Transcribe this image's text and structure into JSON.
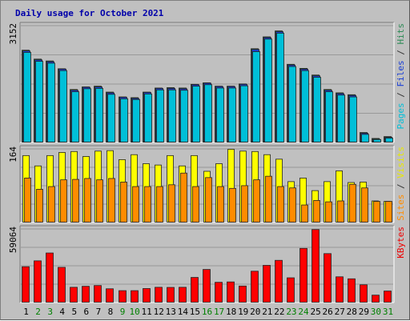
{
  "chart_data": {
    "type": "bar",
    "title": "Daily usage for October 2021",
    "categories": [
      "1",
      "2",
      "3",
      "4",
      "5",
      "6",
      "7",
      "8",
      "9",
      "10",
      "11",
      "12",
      "13",
      "14",
      "15",
      "16",
      "17",
      "18",
      "19",
      "20",
      "21",
      "22",
      "23",
      "24",
      "25",
      "26",
      "27",
      "28",
      "29",
      "30",
      "31"
    ],
    "weekend_days": [
      "2",
      "3",
      "9",
      "10",
      "16",
      "17",
      "23",
      "24",
      "30",
      "31"
    ],
    "panels": [
      {
        "id": "top",
        "ymax": 3152,
        "ymax_label": "3152",
        "axis_label": [
          {
            "text": "Pages",
            "color": "#00bfd8"
          },
          {
            "text": " / ",
            "color": "#333333"
          },
          {
            "text": "Files",
            "color": "#1a3fd6"
          },
          {
            "text": " / ",
            "color": "#333333"
          },
          {
            "text": "Hits",
            "color": "#2e8b57"
          }
        ],
        "series": [
          {
            "name": "Hits",
            "color": "#2e8b57",
            "values": [
              2500,
              2260,
              2210,
              2000,
              1440,
              1510,
              1530,
              1370,
              1240,
              1220,
              1370,
              1480,
              1490,
              1480,
              1580,
              1620,
              1530,
              1530,
              1590,
              2540,
              2860,
              3020,
              2120,
              2010,
              1830,
              1440,
              1350,
              1300,
              280,
              120,
              170
            ]
          },
          {
            "name": "Files",
            "color": "#1a3fd6",
            "values": [
              2480,
              2240,
              2190,
              1990,
              1420,
              1500,
              1510,
              1350,
              1230,
              1200,
              1360,
              1470,
              1470,
              1460,
              1570,
              1610,
              1520,
              1520,
              1580,
              2520,
              2840,
              3000,
              2100,
              1990,
              1810,
              1420,
              1330,
              1280,
              260,
              100,
              150
            ]
          },
          {
            "name": "Pages",
            "color": "#00bfd8",
            "values": [
              2440,
              2200,
              2150,
              1950,
              1380,
              1460,
              1470,
              1310,
              1190,
              1170,
              1320,
              1430,
              1430,
              1420,
              1530,
              1570,
              1480,
              1480,
              1540,
              2460,
              2800,
              2960,
              2060,
              1950,
              1770,
              1380,
              1290,
              1240,
              230,
              90,
              130
            ]
          }
        ]
      },
      {
        "id": "middle",
        "ymax": 164,
        "ymax_label": "164",
        "axis_label": [
          {
            "text": "Sites",
            "color": "#ff8c00"
          },
          {
            "text": " / ",
            "color": "#333333"
          },
          {
            "text": "Visits",
            "color": "#e8e800"
          }
        ],
        "series": [
          {
            "name": "Visits",
            "color": "#ffff00",
            "values": [
              150,
              127,
              150,
              157,
              159,
              148,
              160,
              161,
              141,
              152,
              132,
              129,
              150,
              127,
              150,
              115,
              132,
              164,
              160,
              159,
              152,
              142,
              92,
              100,
              72,
              92,
              116,
              90,
              91,
              49,
              48
            ]
          },
          {
            "name": "Sites",
            "color": "#ff8c00",
            "values": [
              100,
              75,
              81,
              96,
              97,
              99,
              96,
              99,
              91,
              81,
              81,
              81,
              85,
              111,
              81,
              101,
              81,
              77,
              83,
              96,
              104,
              81,
              78,
              40,
              50,
              47,
              49,
              86,
              78,
              48,
              48
            ]
          }
        ]
      },
      {
        "id": "bottom",
        "ymax": 59064,
        "ymax_label": "59064",
        "axis_label": [
          {
            "text": "KBytes",
            "color": "#ee0000"
          }
        ],
        "series": [
          {
            "name": "KBytes",
            "color": "#ff0000",
            "values": [
              29100,
              33800,
              40100,
              28600,
              12600,
              13400,
              14000,
              11400,
              9900,
              9900,
              11600,
              12600,
              12500,
              12600,
              20500,
              26900,
              16600,
              16900,
              13600,
              25500,
              30200,
              34200,
              20200,
              43800,
              58900,
              39600,
              21000,
              19400,
              14600,
              6300,
              9600
            ]
          }
        ]
      }
    ]
  }
}
